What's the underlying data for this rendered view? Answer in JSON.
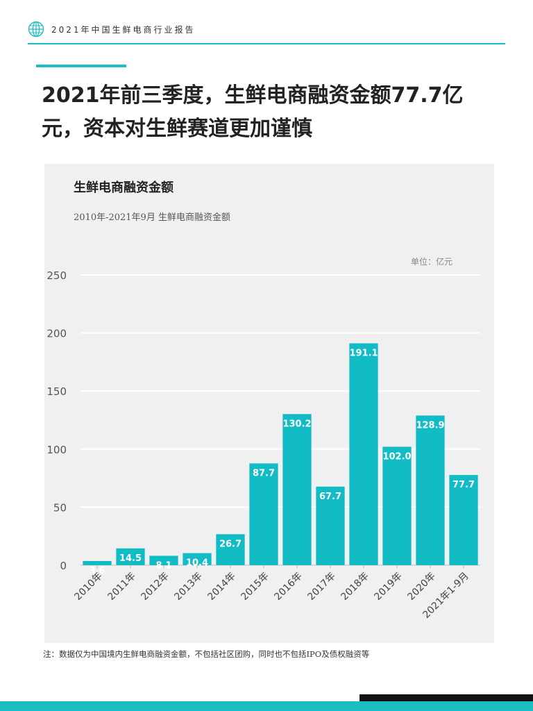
{
  "header": {
    "report_title": "2021年中国生鲜电商行业报告",
    "logo_icon": "globe-icon"
  },
  "headline": "2021年前三季度，生鲜电商融资金额77.7亿元，资本对生鲜赛道更加谨慎",
  "chart": {
    "title": "生鲜电商融资金额",
    "subtitle": "2010年-2021年9月 生鲜电商融资金额",
    "unit": "单位：亿元"
  },
  "chart_data": {
    "type": "bar",
    "categories": [
      "2010年",
      "2011年",
      "2012年",
      "2013年",
      "2014年",
      "2015年",
      "2016年",
      "2017年",
      "2018年",
      "2019年",
      "2020年",
      "2021年1-9月"
    ],
    "values": [
      3.6,
      14.5,
      8.1,
      10.4,
      26.7,
      87.7,
      130.2,
      67.7,
      191.1,
      102.0,
      128.9,
      77.7
    ],
    "value_labels": [
      "3.6",
      "14.5",
      "8.1",
      "10.4",
      "26.7",
      "87.7",
      "130.2",
      "67.7",
      "191.1",
      "102.0",
      "128.9",
      "77.7"
    ],
    "ylim": [
      0,
      250
    ],
    "yticks": [
      0,
      50,
      100,
      150,
      200,
      250
    ],
    "grid": true,
    "bar_color": "#12bcc4",
    "label_color": "#ffffff"
  },
  "footnote": "注：数据仅为中国境内生鲜电商融资金额，不包括社区团购，同时也不包括IPO及债权融资等"
}
